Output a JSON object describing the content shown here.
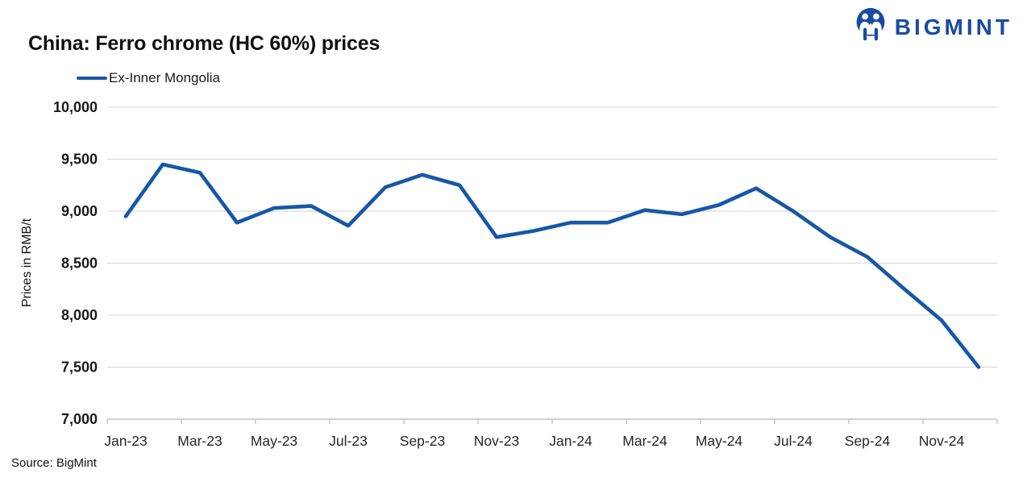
{
  "header": {
    "title": "China: Ferro chrome (HC 60%) prices"
  },
  "brand": {
    "name": "BIGMINT",
    "icon": "walrus-logo-icon",
    "color": "#1B4AA2"
  },
  "legend": {
    "label": "Ex-Inner Mongolia"
  },
  "footer": {
    "source": "Source: BigMint"
  },
  "colors": {
    "line": "#1657A6",
    "gridline": "#D9D9D9",
    "axis": "#C3C3C3",
    "ytick_text": "#1a1a1a",
    "xtick_text": "#262626"
  },
  "chart_data": {
    "type": "line",
    "title": "China: Ferro chrome (HC 60%) prices",
    "xlabel": "",
    "ylabel": "Prices in RMB/t",
    "ylim": [
      7000,
      10000
    ],
    "ytick_values": [
      10000,
      9500,
      9000,
      8500,
      8000,
      7500,
      7000
    ],
    "ytick_labels": [
      "10,000",
      "9,500",
      "9,000",
      "8,500",
      "8,000",
      "7,500",
      "7,000"
    ],
    "categories": [
      "Jan-23",
      "Feb-23",
      "Mar-23",
      "Apr-23",
      "May-23",
      "Jun-23",
      "Jul-23",
      "Aug-23",
      "Sep-23",
      "Oct-23",
      "Nov-23",
      "Dec-23",
      "Jan-24",
      "Feb-24",
      "Mar-24",
      "Apr-24",
      "May-24",
      "Jun-24",
      "Jul-24",
      "Aug-24",
      "Sep-24",
      "Oct-24",
      "Nov-24",
      "Dec-24"
    ],
    "xtick_labels": [
      "Jan-23",
      "Mar-23",
      "May-23",
      "Jul-23",
      "Sep-23",
      "Nov-23",
      "Jan-24",
      "Mar-24",
      "May-24",
      "Jul-24",
      "Sep-24",
      "Nov-24"
    ],
    "xtick_every": 2,
    "grid": "horizontal",
    "legend_position": "top-left",
    "series": [
      {
        "name": "Ex-Inner Mongolia",
        "color": "#1657A6",
        "values": [
          8950,
          9450,
          9370,
          8890,
          9030,
          9050,
          8860,
          9230,
          9350,
          9250,
          8750,
          8810,
          8890,
          8890,
          9010,
          8970,
          9060,
          9220,
          9000,
          8750,
          8560,
          8250,
          7950,
          7500
        ]
      }
    ]
  }
}
